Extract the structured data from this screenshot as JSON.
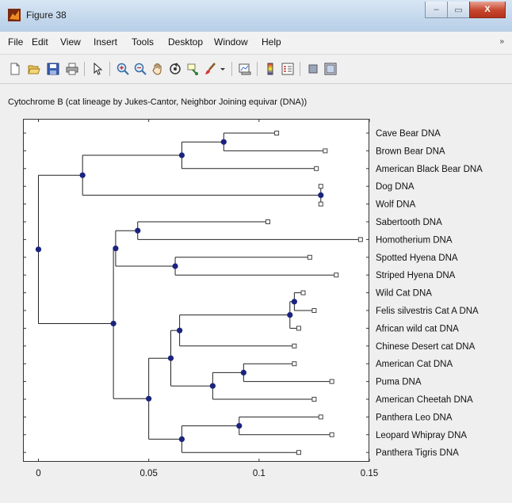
{
  "window": {
    "title": "Figure 38",
    "buttons": {
      "minimize": "–",
      "maximize": "▭",
      "close": "X"
    }
  },
  "menubar": {
    "items": [
      "File",
      "Edit",
      "View",
      "Insert",
      "Tools",
      "Desktop",
      "Window",
      "Help"
    ],
    "overflow_arrow": "»"
  },
  "toolbar": {
    "icons": [
      "new-figure-icon",
      "open-file-icon",
      "save-icon",
      "print-icon",
      "pointer-arrow-icon",
      "zoom-in-icon",
      "zoom-out-icon",
      "pan-hand-icon",
      "rotate-3d-icon",
      "data-cursor-icon",
      "brush-icon",
      "link-plot-icon",
      "colorbar-icon",
      "legend-icon",
      "hide-plot-tools-icon",
      "show-plot-tools-icon"
    ]
  },
  "colors": {
    "branch": "#222222",
    "node_marker": "#1a237e",
    "leaf_marker": "#444444"
  },
  "chart_data": {
    "type": "dendrogram",
    "title": "Cytochrome B (cat lineage by Jukes-Cantor, Neighbor Joining equivar (DNA))",
    "xlabel": "",
    "ylabel": "",
    "xlim": [
      -0.007,
      0.15
    ],
    "xticks": [
      {
        "value": 0,
        "label": "0"
      },
      {
        "value": 0.05,
        "label": "0.05"
      },
      {
        "value": 0.1,
        "label": "0.1"
      },
      {
        "value": 0.15,
        "label": "0.15"
      }
    ],
    "leaves": [
      {
        "name": "Cave Bear DNA",
        "x": 0.108
      },
      {
        "name": "Brown Bear DNA",
        "x": 0.13
      },
      {
        "name": "American Black Bear DNA",
        "x": 0.126
      },
      {
        "name": "Dog DNA",
        "x": 0.128
      },
      {
        "name": "Wolf DNA",
        "x": 0.128
      },
      {
        "name": "Sabertooth DNA",
        "x": 0.104
      },
      {
        "name": "Homotherium DNA",
        "x": 0.146
      },
      {
        "name": "Spotted Hyena DNA",
        "x": 0.123
      },
      {
        "name": "Striped Hyena DNA",
        "x": 0.135
      },
      {
        "name": "Wild Cat DNA",
        "x": 0.12
      },
      {
        "name": "Felis silvestris Cat A DNA",
        "x": 0.125
      },
      {
        "name": "African wild cat DNA",
        "x": 0.118
      },
      {
        "name": "Chinese Desert cat DNA",
        "x": 0.116
      },
      {
        "name": "American Cat DNA",
        "x": 0.116
      },
      {
        "name": "Puma DNA",
        "x": 0.133
      },
      {
        "name": " American Cheetah DNA",
        "x": 0.125
      },
      {
        "name": "Panthera Leo DNA",
        "x": 0.128
      },
      {
        "name": "Leopard Whipray DNA",
        "x": 0.133
      },
      {
        "name": "Panthera Tigris DNA",
        "x": 0.118
      }
    ],
    "internal_nodes": [
      {
        "id": "N1",
        "x": 0.084,
        "children": [
          "L0",
          "L1"
        ]
      },
      {
        "id": "N2",
        "x": 0.065,
        "children": [
          "N1",
          "L2"
        ]
      },
      {
        "id": "N3",
        "x": 0.128,
        "children": [
          "L3",
          "L4"
        ]
      },
      {
        "id": "N4",
        "x": 0.02,
        "children": [
          "N2",
          "N3"
        ]
      },
      {
        "id": "N5",
        "x": 0.045,
        "children": [
          "L5",
          "L6"
        ]
      },
      {
        "id": "N6",
        "x": 0.062,
        "children": [
          "L7",
          "L8"
        ]
      },
      {
        "id": "N7",
        "x": 0.035,
        "children": [
          "N5",
          "N6"
        ]
      },
      {
        "id": "N8",
        "x": 0.116,
        "children": [
          "L9",
          "L10"
        ]
      },
      {
        "id": "N9",
        "x": 0.114,
        "children": [
          "N8",
          "L11"
        ]
      },
      {
        "id": "N10",
        "x": 0.064,
        "children": [
          "N9",
          "L12"
        ]
      },
      {
        "id": "N11",
        "x": 0.093,
        "children": [
          "L13",
          "L14"
        ]
      },
      {
        "id": "N12",
        "x": 0.079,
        "children": [
          "N11",
          "L15"
        ]
      },
      {
        "id": "N13",
        "x": 0.06,
        "children": [
          "N10",
          "N12"
        ]
      },
      {
        "id": "N14",
        "x": 0.091,
        "children": [
          "L16",
          "L17"
        ]
      },
      {
        "id": "N15",
        "x": 0.065,
        "children": [
          "N14",
          "L18"
        ]
      },
      {
        "id": "N16",
        "x": 0.05,
        "children": [
          "N13",
          "N15"
        ]
      },
      {
        "id": "N17",
        "x": 0.034,
        "children": [
          "N7",
          "N16"
        ]
      },
      {
        "id": "N18",
        "x": 0.0,
        "children": [
          "N4",
          "N17"
        ]
      }
    ],
    "grid": false,
    "legend": "none"
  }
}
